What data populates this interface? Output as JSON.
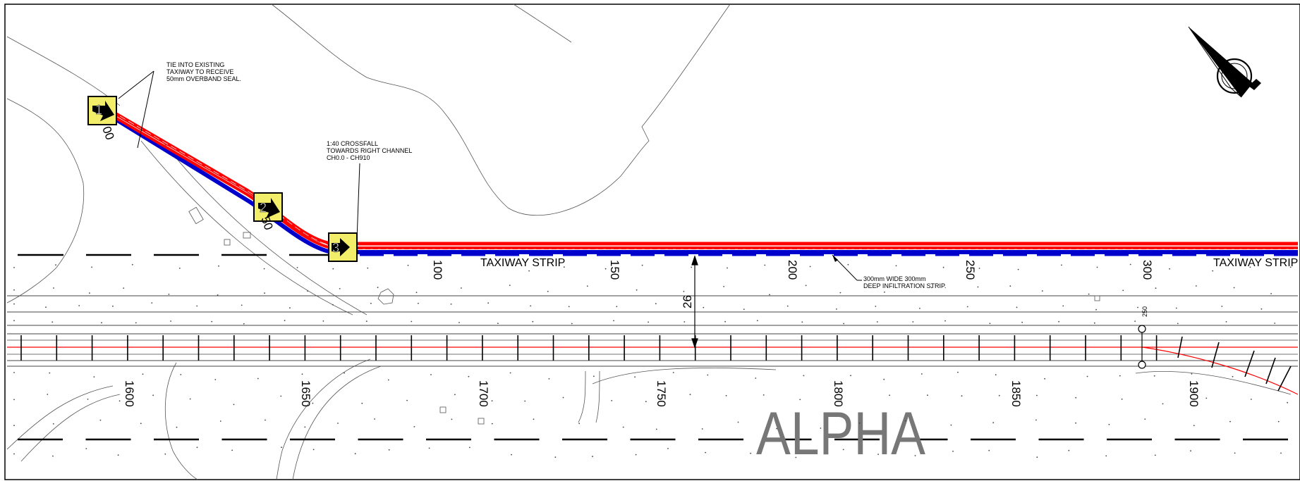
{
  "notes": {
    "tie_in": [
      "TIE INTO EXISTING",
      "TAXIWAY TO RECEIVE",
      "50mm OVERBAND SEAL."
    ],
    "crossfall": [
      "1:40 CROSSFALL",
      "TOWARDS RIGHT CHANNEL",
      "CH0.0 - CH910"
    ],
    "infiltration": [
      "300mm WIDE 300mm",
      "DEEP INFILTRATION STRIP."
    ]
  },
  "markers": [
    "1",
    "2",
    "3"
  ],
  "chainages_upper": [
    "00",
    "50",
    "100",
    "150",
    "200",
    "250",
    "300"
  ],
  "chainages_lower": [
    "1600",
    "1650",
    "1700",
    "1750",
    "1800",
    "1850",
    "1900"
  ],
  "strip_labels": [
    "TAXIWAY STRIP",
    "TAXIWAY STRIP"
  ],
  "dimension": "26",
  "small_ref": "250",
  "taxiway_name": "ALPHA",
  "colors": {
    "design_line": "#ff0000",
    "channel": "#0000cc",
    "marker_fill": "#f2ee6a",
    "label_grey": "#777777"
  }
}
